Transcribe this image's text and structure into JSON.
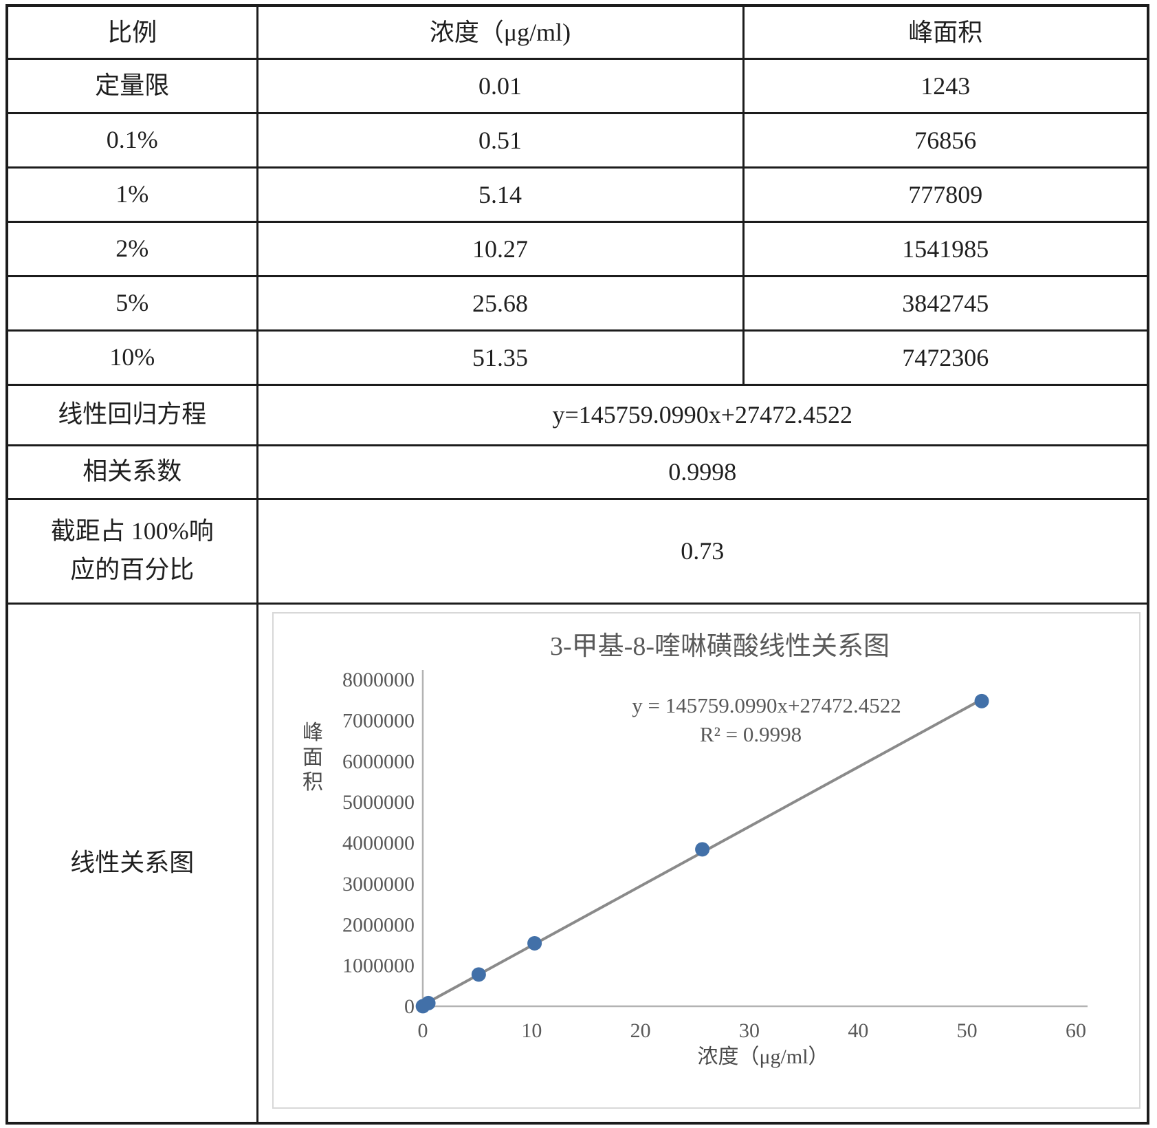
{
  "table": {
    "headers": [
      "比例",
      "浓度（μg/ml)",
      "峰面积"
    ],
    "rows": [
      {
        "ratio": "定量限",
        "concentration": "0.01",
        "peak_area": "1243"
      },
      {
        "ratio": "0.1%",
        "concentration": "0.51",
        "peak_area": "76856"
      },
      {
        "ratio": "1%",
        "concentration": "5.14",
        "peak_area": "777809"
      },
      {
        "ratio": "2%",
        "concentration": "10.27",
        "peak_area": "1541985"
      },
      {
        "ratio": "5%",
        "concentration": "25.68",
        "peak_area": "3842745"
      },
      {
        "ratio": "10%",
        "concentration": "51.35",
        "peak_area": "7472306"
      }
    ],
    "summary": [
      {
        "key": "equation",
        "label": "线性回归方程",
        "value": "y=145759.0990x+27472.4522"
      },
      {
        "key": "corr",
        "label": "相关系数",
        "value": "0.9998"
      },
      {
        "key": "intercept",
        "label": "截距占 100%响应的百分比",
        "value": "0.73"
      }
    ],
    "chart_row_label": "线性关系图"
  },
  "chart_data": {
    "type": "scatter",
    "title": "3-甲基-8-喹啉磺酸线性关系图",
    "xlabel": "浓度（μg/ml）",
    "ylabel": "峰面积",
    "x": [
      0.01,
      0.51,
      5.14,
      10.27,
      25.68,
      51.35
    ],
    "y": [
      1243,
      76856,
      777809,
      1541985,
      3842745,
      7472306
    ],
    "trendline": {
      "slope": 145759.099,
      "intercept": 27472.4522
    },
    "annotation_line1": "y = 145759.0990x+27472.4522",
    "annotation_line2": "R² = 0.9998",
    "xlim": [
      0,
      60
    ],
    "ylim": [
      0,
      8000000
    ],
    "x_ticks": [
      0,
      10,
      20,
      30,
      40,
      50,
      60
    ],
    "y_ticks": [
      0,
      1000000,
      2000000,
      3000000,
      4000000,
      5000000,
      6000000,
      7000000,
      8000000
    ],
    "grid": false,
    "legend": "none",
    "colors": {
      "marker": "#4270a8",
      "trend": "#8a8a8a",
      "axis": "#b3b3b3",
      "chart_text": "#595959",
      "axis_title_text": "#4a4a4a",
      "frame": "#d8d8d8"
    }
  }
}
